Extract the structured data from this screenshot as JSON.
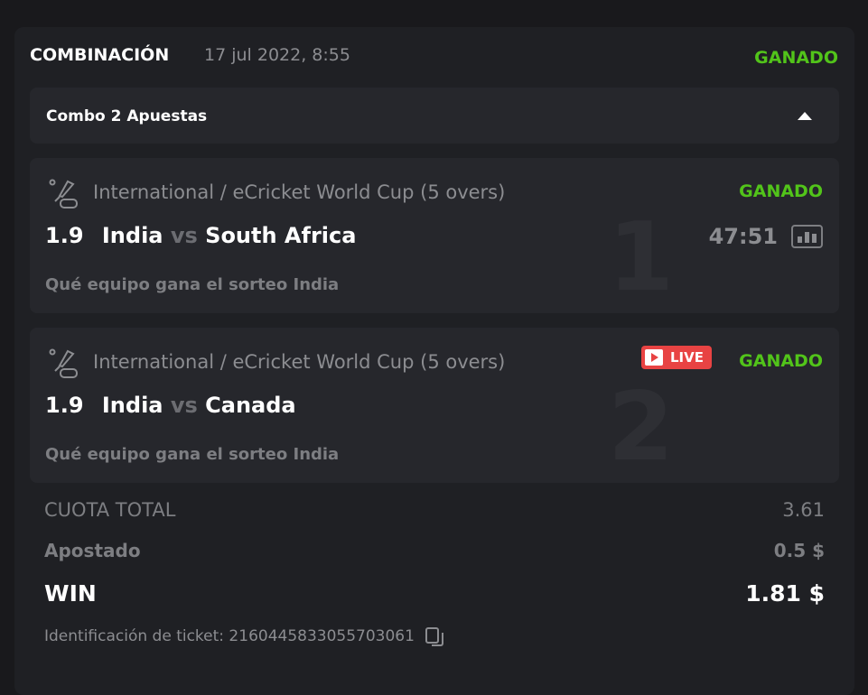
{
  "header": {
    "title": "COMBINACIÓN",
    "date": "17 jul 2022, 8:55",
    "status": "GANADO"
  },
  "combo": {
    "label": "Combo 2 Apuestas"
  },
  "bets": [
    {
      "number": "1",
      "league": "International / eCricket World Cup (5 overs)",
      "status": "GANADO",
      "odd": "1.9",
      "home": "India",
      "vs": "vs",
      "away": "South Africa",
      "timer": "47:51",
      "market": "Qué equipo gana el sorteo India"
    },
    {
      "number": "2",
      "league": "International / eCricket World Cup (5 overs)",
      "status": "GANADO",
      "live": "LIVE",
      "odd": "1.9",
      "home": "India",
      "vs": "vs",
      "away": "Canada",
      "market": "Qué equipo gana el sorteo India"
    }
  ],
  "summary": {
    "total_odds_label": "CUOTA TOTAL",
    "total_odds": "3.61",
    "staked_label": "Apostado",
    "staked": "0.5 $",
    "win_label": "WIN",
    "win": "1.81 $"
  },
  "ticket": {
    "label": "Identificación de ticket: 2160445833055703061"
  },
  "colors": {
    "won": "#52c41a",
    "live": "#e84343"
  }
}
